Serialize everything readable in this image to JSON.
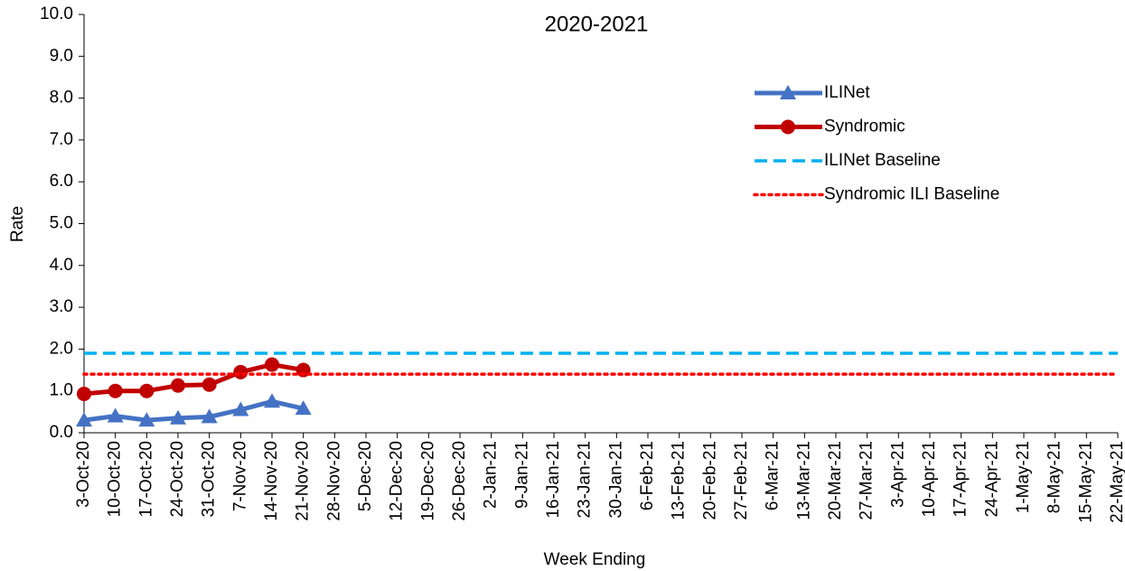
{
  "chart_data": {
    "type": "line",
    "title": "2020-2021",
    "x_label": "Week Ending",
    "y_label": "Rate",
    "categories": [
      "3-Oct-20",
      "10-Oct-20",
      "17-Oct-20",
      "24-Oct-20",
      "31-Oct-20",
      "7-Nov-20",
      "14-Nov-20",
      "21-Nov-20",
      "28-Nov-20",
      "5-Dec-20",
      "12-Dec-20",
      "19-Dec-20",
      "26-Dec-20",
      "2-Jan-21",
      "9-Jan-21",
      "16-Jan-21",
      "23-Jan-21",
      "30-Jan-21",
      "6-Feb-21",
      "13-Feb-21",
      "20-Feb-21",
      "27-Feb-21",
      "6-Mar-21",
      "13-Mar-21",
      "20-Mar-21",
      "27-Mar-21",
      "3-Apr-21",
      "10-Apr-21",
      "17-Apr-21",
      "24-Apr-21",
      "1-May-21",
      "8-May-21",
      "15-May-21",
      "22-May-21"
    ],
    "series": [
      {
        "name": "ILINet",
        "color": "#4472c4",
        "marker": "triangle",
        "dash": "solid",
        "values": [
          0.3,
          0.4,
          0.3,
          0.35,
          0.38,
          0.55,
          0.75,
          0.58,
          null,
          null,
          null,
          null,
          null,
          null,
          null,
          null,
          null,
          null,
          null,
          null,
          null,
          null,
          null,
          null,
          null,
          null,
          null,
          null,
          null,
          null,
          null,
          null,
          null,
          null
        ]
      },
      {
        "name": "Syndromic",
        "color": "#c00000",
        "marker": "circle",
        "dash": "solid",
        "values": [
          0.93,
          1.0,
          1.0,
          1.13,
          1.15,
          1.45,
          1.63,
          1.5,
          null,
          null,
          null,
          null,
          null,
          null,
          null,
          null,
          null,
          null,
          null,
          null,
          null,
          null,
          null,
          null,
          null,
          null,
          null,
          null,
          null,
          null,
          null,
          null,
          null,
          null
        ]
      },
      {
        "name": "ILINet Baseline",
        "color": "#00b0f0",
        "dash": "dashed",
        "values": [
          1.9,
          1.9,
          1.9,
          1.9,
          1.9,
          1.9,
          1.9,
          1.9,
          1.9,
          1.9,
          1.9,
          1.9,
          1.9,
          1.9,
          1.9,
          1.9,
          1.9,
          1.9,
          1.9,
          1.9,
          1.9,
          1.9,
          1.9,
          1.9,
          1.9,
          1.9,
          1.9,
          1.9,
          1.9,
          1.9,
          1.9,
          1.9,
          1.9,
          1.9
        ]
      },
      {
        "name": "Syndromic ILI Baseline",
        "color": "#ff0000",
        "dash": "dotted",
        "values": [
          1.4,
          1.4,
          1.4,
          1.4,
          1.4,
          1.4,
          1.4,
          1.4,
          1.4,
          1.4,
          1.4,
          1.4,
          1.4,
          1.4,
          1.4,
          1.4,
          1.4,
          1.4,
          1.4,
          1.4,
          1.4,
          1.4,
          1.4,
          1.4,
          1.4,
          1.4,
          1.4,
          1.4,
          1.4,
          1.4,
          1.4,
          1.4,
          1.4,
          1.4
        ]
      }
    ],
    "ylim": [
      0,
      10
    ],
    "yticks": [
      {
        "value": 0,
        "label": "0.0"
      },
      {
        "value": 1,
        "label": "1.0"
      },
      {
        "value": 2,
        "label": "2.0"
      },
      {
        "value": 3,
        "label": "3.0"
      },
      {
        "value": 4,
        "label": "4.0"
      },
      {
        "value": 5,
        "label": "5.0"
      },
      {
        "value": 6,
        "label": "6.0"
      },
      {
        "value": 7,
        "label": "7.0"
      },
      {
        "value": 8,
        "label": "8.0"
      },
      {
        "value": 9,
        "label": "9.0"
      },
      {
        "value": 10,
        "label": "10.0"
      }
    ],
    "grid": false,
    "legend": "upper-right"
  }
}
